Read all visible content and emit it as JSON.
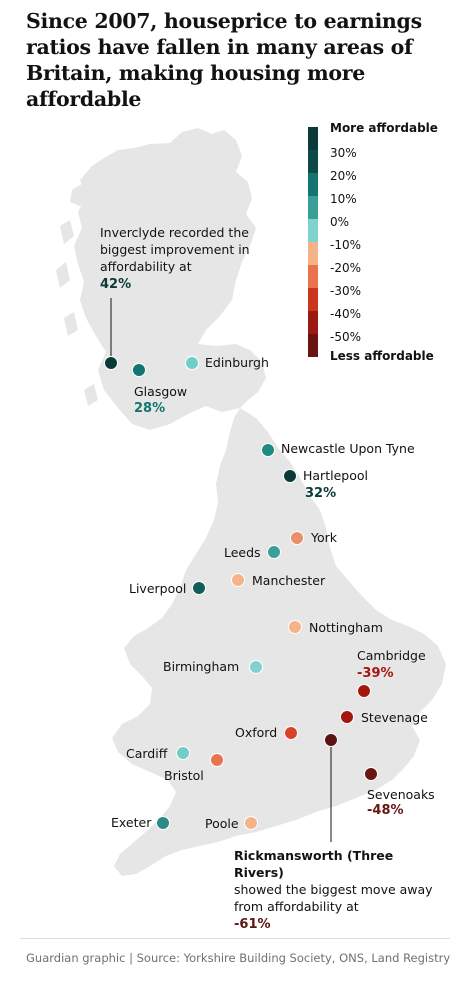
{
  "title": "Since 2007, houseprice to earnings ratios have fallen in many areas of Britain, making housing more affordable",
  "legend": {
    "top_label": "More affordable",
    "bottom_label": "Less affordable",
    "steps": [
      {
        "label": "30%",
        "color": "#0b4a48"
      },
      {
        "label": "20%",
        "color": "#12756f"
      },
      {
        "label": "10%",
        "color": "#3a9f98"
      },
      {
        "label": "0%",
        "color": "#7fd3cc"
      },
      {
        "label": "-10%",
        "color": "#f4b488"
      },
      {
        "label": "-20%",
        "color": "#e8734c"
      },
      {
        "label": "-30%",
        "color": "#c9351f"
      },
      {
        "label": "-40%",
        "color": "#9b1a12"
      },
      {
        "label": "-50%",
        "color": "#6a1512"
      }
    ]
  },
  "places": [
    {
      "name": "Edinburgh",
      "color": "#6fcfc6"
    },
    {
      "name": "Glasgow",
      "color": "#12756f",
      "value": "28%"
    },
    {
      "name": "Inverclyde",
      "color": "#0b3b39"
    },
    {
      "name": "Newcastle Upon Tyne",
      "color": "#1f8a82"
    },
    {
      "name": "Hartlepool",
      "color": "#0b3b39",
      "value": "32%"
    },
    {
      "name": "York",
      "color": "#eb8f6b"
    },
    {
      "name": "Leeds",
      "color": "#3a9f98"
    },
    {
      "name": "Manchester",
      "color": "#f4b488"
    },
    {
      "name": "Liverpool",
      "color": "#0f5e5a"
    },
    {
      "name": "Nottingham",
      "color": "#f4b488"
    },
    {
      "name": "Birmingham",
      "color": "#7fd3cc"
    },
    {
      "name": "Cambridge",
      "color": "#a3170f",
      "value": "-39%"
    },
    {
      "name": "Stevenage",
      "color": "#a3170f"
    },
    {
      "name": "Oxford",
      "color": "#d8432a"
    },
    {
      "name": "Rickmansworth",
      "color": "#5a1412"
    },
    {
      "name": "Cardiff",
      "color": "#6fcfc6"
    },
    {
      "name": "Bristol",
      "color": "#e8734c"
    },
    {
      "name": "Sevenoaks",
      "color": "#6a1512",
      "value": "-48%"
    },
    {
      "name": "Exeter",
      "color": "#2a8c85"
    },
    {
      "name": "Poole",
      "color": "#f4b488"
    }
  ],
  "annotations": {
    "inverclyde_text": "Inverclyde recorded the biggest improvement in affordability at",
    "inverclyde_value": "42%",
    "rickmansworth_text_1": "Rickmansworth (Three Rivers)",
    "rickmansworth_text_2": "showed the biggest move away from affordability at",
    "rickmansworth_value": "-61%"
  },
  "footer": "Guardian graphic | Source: Yorkshire Building Society, ONS, Land Registry"
}
